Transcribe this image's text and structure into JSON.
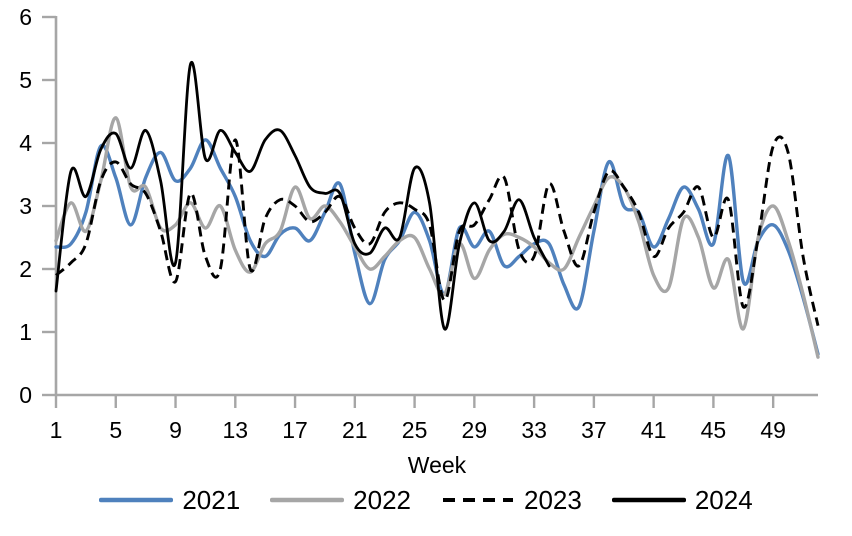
{
  "chart_data": {
    "type": "line",
    "title": "",
    "xlabel": "Week",
    "ylabel": "",
    "xlim": [
      1,
      52
    ],
    "ylim": [
      0,
      6
    ],
    "grid": false,
    "x_ticks": [
      1,
      5,
      9,
      13,
      17,
      21,
      25,
      29,
      33,
      37,
      41,
      45,
      49
    ],
    "y_ticks": [
      0,
      1,
      2,
      3,
      4,
      5,
      6
    ],
    "axis_color": "#a6a6a6",
    "legend_position": "bottom-center",
    "smoothed_lines": true,
    "weeks_start": 1,
    "series": [
      {
        "name": "2021",
        "color": "#4f81bd",
        "dashed": false,
        "stroke_width": 3.4,
        "values": [
          2.35,
          2.4,
          2.9,
          3.95,
          3.45,
          2.7,
          3.45,
          3.85,
          3.4,
          3.6,
          4.05,
          3.6,
          3.15,
          2.45,
          2.2,
          2.55,
          2.65,
          2.45,
          2.9,
          3.35,
          2.25,
          1.45,
          2.15,
          2.45,
          2.9,
          2.45,
          1.6,
          2.65,
          2.35,
          2.6,
          2.05,
          2.2,
          2.4,
          2.4,
          1.75,
          1.4,
          2.6,
          3.7,
          3.0,
          2.9,
          2.35,
          2.8,
          3.3,
          2.95,
          2.4,
          3.8,
          1.8,
          2.45,
          2.7,
          2.3,
          1.55,
          0.65
        ]
      },
      {
        "name": "2022",
        "color": "#a6a6a6",
        "dashed": false,
        "stroke_width": 3.4,
        "values": [
          2.45,
          3.05,
          2.6,
          3.4,
          4.4,
          3.3,
          3.3,
          2.65,
          2.7,
          3.05,
          2.65,
          3.0,
          2.3,
          1.95,
          2.4,
          2.6,
          3.3,
          2.8,
          3.0,
          2.75,
          2.35,
          2.0,
          2.2,
          2.45,
          2.5,
          2.0,
          1.6,
          2.4,
          1.85,
          2.3,
          2.55,
          2.5,
          2.35,
          2.1,
          2.0,
          2.5,
          3.0,
          3.45,
          3.3,
          2.75,
          1.9,
          1.7,
          2.8,
          2.5,
          1.7,
          2.15,
          1.05,
          2.5,
          3.0,
          2.45,
          1.6,
          0.6
        ]
      },
      {
        "name": "2023",
        "color": "#000000",
        "dashed": true,
        "stroke_width": 2.9,
        "values": [
          1.9,
          2.1,
          2.4,
          3.4,
          3.7,
          3.35,
          3.2,
          2.6,
          1.8,
          3.2,
          2.2,
          2.0,
          4.05,
          2.0,
          2.8,
          3.1,
          3.0,
          2.75,
          2.9,
          3.15,
          2.65,
          2.4,
          2.9,
          3.05,
          2.95,
          2.7,
          1.5,
          2.6,
          2.7,
          3.1,
          3.45,
          2.3,
          2.2,
          3.35,
          2.6,
          2.05,
          2.9,
          3.55,
          3.3,
          2.9,
          2.2,
          2.65,
          2.9,
          3.3,
          2.5,
          3.1,
          1.4,
          2.5,
          3.95,
          3.85,
          2.2,
          1.1
        ]
      },
      {
        "name": "2024",
        "color": "#000000",
        "dashed": false,
        "stroke_width": 2.8,
        "values": [
          1.65,
          3.55,
          3.15,
          3.9,
          4.15,
          3.6,
          4.2,
          3.4,
          2.1,
          5.25,
          3.75,
          4.2,
          3.85,
          3.55,
          4.05,
          4.2,
          3.8,
          3.3,
          3.2,
          3.2,
          2.4,
          2.25,
          2.65,
          2.5,
          3.6,
          3.05,
          1.05,
          2.4,
          3.05,
          2.45,
          2.6,
          3.1,
          2.5,
          2.05
        ]
      }
    ]
  }
}
